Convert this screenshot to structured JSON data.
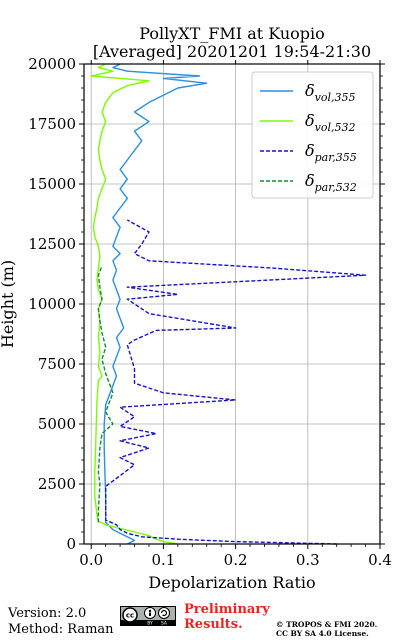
{
  "title_line1": "PollyXT_FMI at Kuopio",
  "title_line2": "[Averaged] 20201201 19:54-21:30",
  "footer": {
    "version": "Version: 2.0",
    "method": "Method: Raman",
    "preliminary_line1": "Preliminary",
    "preliminary_line2": "Results.",
    "copyright_line1": "© TROPOS & FMI 2020.",
    "copyright_line2": "CC BY SA 4.0 License.",
    "cc_badge": [
      "cc",
      "BY",
      "SA"
    ]
  },
  "chart_data": {
    "type": "line",
    "xlabel": "Depolarization Ratio",
    "ylabel": "Height (m)",
    "xlim": [
      -0.01,
      0.4
    ],
    "ylim": [
      0,
      20000
    ],
    "xticks": [
      0.0,
      0.1,
      0.2,
      0.3,
      0.4
    ],
    "xtick_labels": [
      "0.0",
      "0.1",
      "0.2",
      "0.3",
      "0.4"
    ],
    "yticks": [
      0,
      2500,
      5000,
      7500,
      10000,
      12500,
      15000,
      17500,
      20000
    ],
    "ytick_labels": [
      "0",
      "2500",
      "5000",
      "7500",
      "10000",
      "12500",
      "15000",
      "17500",
      "20000"
    ],
    "grid": true,
    "legend_position": "top-right",
    "series": [
      {
        "name": "δvol,355",
        "name_base": "δ",
        "name_sub": "vol,355",
        "color": "#2c8fe0",
        "style": "solid",
        "points": [
          [
            0.05,
            0
          ],
          [
            0.06,
            150
          ],
          [
            0.05,
            300
          ],
          [
            0.04,
            450
          ],
          [
            0.03,
            600
          ],
          [
            0.025,
            750
          ],
          [
            0.02,
            900
          ],
          [
            0.02,
            1200
          ],
          [
            0.02,
            2000
          ],
          [
            0.019,
            3000
          ],
          [
            0.018,
            4000
          ],
          [
            0.018,
            5000
          ],
          [
            0.02,
            5800
          ],
          [
            0.025,
            6200
          ],
          [
            0.03,
            6600
          ],
          [
            0.035,
            7000
          ],
          [
            0.03,
            7400
          ],
          [
            0.035,
            7800
          ],
          [
            0.04,
            8200
          ],
          [
            0.035,
            8600
          ],
          [
            0.045,
            9000
          ],
          [
            0.04,
            9400
          ],
          [
            0.035,
            9800
          ],
          [
            0.04,
            10200
          ],
          [
            0.035,
            10600
          ],
          [
            0.03,
            11000
          ],
          [
            0.035,
            11400
          ],
          [
            0.03,
            11800
          ],
          [
            0.04,
            12100
          ],
          [
            0.03,
            12400
          ],
          [
            0.035,
            12800
          ],
          [
            0.04,
            13200
          ],
          [
            0.03,
            13600
          ],
          [
            0.04,
            14000
          ],
          [
            0.05,
            14400
          ],
          [
            0.04,
            14800
          ],
          [
            0.05,
            15200
          ],
          [
            0.04,
            15600
          ],
          [
            0.05,
            16000
          ],
          [
            0.06,
            16400
          ],
          [
            0.07,
            16800
          ],
          [
            0.06,
            17200
          ],
          [
            0.08,
            17600
          ],
          [
            0.06,
            18000
          ],
          [
            0.08,
            18400
          ],
          [
            0.1,
            18700
          ],
          [
            0.12,
            19000
          ],
          [
            0.16,
            19200
          ],
          [
            0.1,
            19400
          ],
          [
            0.15,
            19500
          ],
          [
            0.05,
            19700
          ],
          [
            0.03,
            19850
          ],
          [
            0.04,
            20000
          ]
        ]
      },
      {
        "name": "δvol,532",
        "name_base": "δ",
        "name_sub": "vol,532",
        "color": "#7cfc00",
        "style": "solid",
        "points": [
          [
            0.12,
            0
          ],
          [
            0.1,
            100
          ],
          [
            0.09,
            200
          ],
          [
            0.08,
            350
          ],
          [
            0.06,
            500
          ],
          [
            0.04,
            650
          ],
          [
            0.02,
            800
          ],
          [
            0.01,
            950
          ],
          [
            0.008,
            1200
          ],
          [
            0.005,
            2000
          ],
          [
            0.005,
            3000
          ],
          [
            0.006,
            4000
          ],
          [
            0.007,
            5000
          ],
          [
            0.008,
            6000
          ],
          [
            0.01,
            6800
          ],
          [
            0.015,
            7000
          ],
          [
            0.01,
            7400
          ],
          [
            0.012,
            8000
          ],
          [
            0.01,
            8600
          ],
          [
            0.012,
            9200
          ],
          [
            0.01,
            9800
          ],
          [
            0.015,
            10200
          ],
          [
            0.01,
            10600
          ],
          [
            0.008,
            11000
          ],
          [
            0.01,
            11500
          ],
          [
            0.012,
            12000
          ],
          [
            0.01,
            12400
          ],
          [
            0.005,
            12800
          ],
          [
            0.003,
            13200
          ],
          [
            0.005,
            13600
          ],
          [
            0.008,
            14000
          ],
          [
            0.01,
            14400
          ],
          [
            0.015,
            14800
          ],
          [
            0.02,
            15200
          ],
          [
            0.015,
            15600
          ],
          [
            0.012,
            16000
          ],
          [
            0.01,
            16400
          ],
          [
            0.012,
            16800
          ],
          [
            0.015,
            17200
          ],
          [
            0.02,
            17600
          ],
          [
            0.015,
            18000
          ],
          [
            0.02,
            18400
          ],
          [
            0.03,
            18800
          ],
          [
            0.05,
            19100
          ],
          [
            0.08,
            19300
          ],
          [
            0.0,
            19500
          ],
          [
            0.03,
            19700
          ],
          [
            0.01,
            19850
          ],
          [
            0.02,
            20000
          ]
        ]
      },
      {
        "name": "δpar,355",
        "name_base": "δ",
        "name_sub": "par,355",
        "color": "#1515d0",
        "style": "dashed",
        "points": [
          [
            0.34,
            0
          ],
          [
            0.2,
            100
          ],
          [
            0.12,
            200
          ],
          [
            0.07,
            300
          ],
          [
            0.05,
            450
          ],
          [
            0.04,
            600
          ],
          [
            0.035,
            800
          ],
          [
            0.02,
            1000
          ],
          [
            0.02,
            2400
          ],
          [
            0.06,
            3300
          ],
          [
            0.04,
            3600
          ],
          [
            0.08,
            4000
          ],
          [
            0.04,
            4300
          ],
          [
            0.09,
            4600
          ],
          [
            0.04,
            4900
          ],
          [
            0.06,
            5300
          ],
          [
            0.04,
            5700
          ],
          [
            0.2,
            6000
          ],
          [
            0.1,
            6300
          ],
          [
            0.06,
            6700
          ],
          [
            0.06,
            7300
          ],
          [
            0.05,
            8300
          ],
          [
            0.06,
            8500
          ],
          [
            0.09,
            8900
          ],
          [
            0.2,
            9000
          ],
          [
            0.16,
            9200
          ],
          [
            0.08,
            9600
          ],
          [
            0.05,
            10200
          ],
          [
            0.12,
            10400
          ],
          [
            0.05,
            10700
          ],
          [
            0.38,
            11200
          ],
          [
            0.25,
            11500
          ],
          [
            0.08,
            11800
          ],
          [
            0.06,
            12100
          ],
          [
            0.07,
            12500
          ],
          [
            0.08,
            13000
          ],
          [
            0.05,
            13500
          ]
        ]
      },
      {
        "name": "δpar,532",
        "name_base": "δ",
        "name_sub": "par,532",
        "color": "#118a38",
        "style": "dashed",
        "points": [
          [
            0.01,
            900
          ],
          [
            0.01,
            1400
          ],
          [
            0.012,
            2500
          ],
          [
            0.01,
            3000
          ],
          [
            0.012,
            4000
          ],
          [
            0.015,
            4600
          ],
          [
            0.03,
            5000
          ],
          [
            0.02,
            5500
          ],
          [
            0.025,
            5900
          ],
          [
            0.03,
            6300
          ],
          [
            0.025,
            6700
          ],
          [
            0.02,
            7100
          ],
          [
            0.015,
            7700
          ],
          [
            0.02,
            8200
          ],
          [
            0.015,
            8800
          ],
          [
            0.012,
            9300
          ],
          [
            0.01,
            9800
          ],
          [
            0.015,
            10200
          ],
          [
            0.012,
            10700
          ],
          [
            0.01,
            11200
          ],
          [
            0.015,
            11600
          ]
        ]
      }
    ]
  }
}
